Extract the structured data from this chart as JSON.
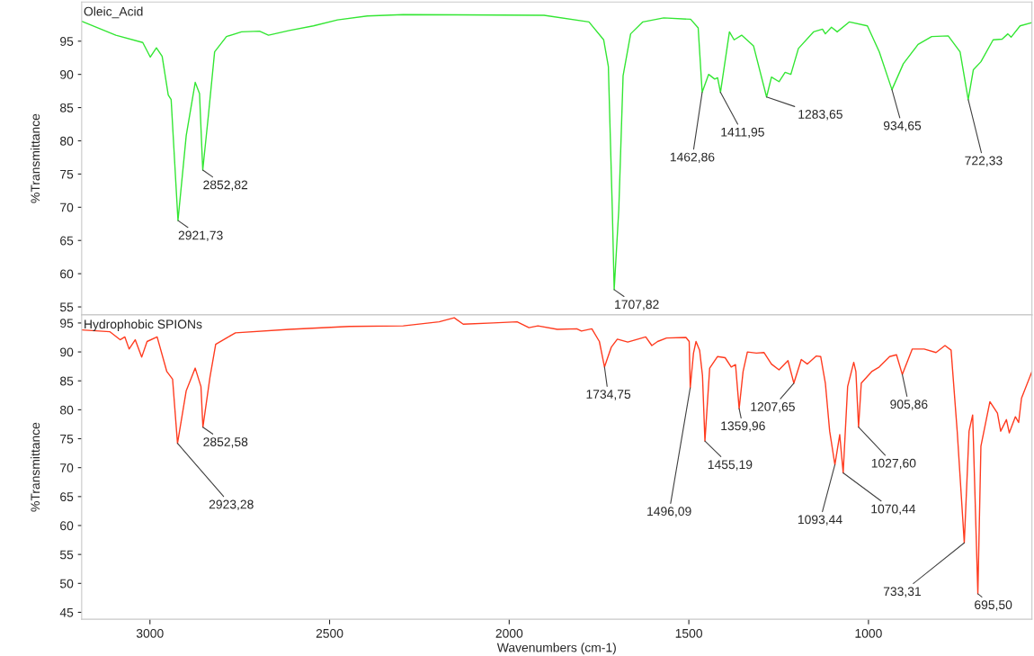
{
  "chart_data": [
    {
      "type": "line",
      "ylabel": "%Transmittance",
      "xlim": [
        3190,
        545
      ],
      "ylim": [
        53.8,
        100.9
      ],
      "tick_labels": "y",
      "xticks": [
        3000,
        2500,
        2000,
        1500,
        1000
      ],
      "yticks": [
        55,
        60,
        65,
        70,
        75,
        80,
        85,
        90,
        95
      ],
      "series": [
        {
          "name": "Oleic_Acid",
          "color": "#33e633",
          "x": [
            3190,
            3095,
            3020,
            2999,
            2982,
            2966,
            2949,
            2941,
            2922,
            2899,
            2874,
            2862,
            2853,
            2837,
            2820,
            2787,
            2745,
            2695,
            2670,
            2612,
            2545,
            2478,
            2395,
            2295,
            1903,
            1778,
            1737,
            1724,
            1713,
            1707.82,
            1695,
            1683,
            1662,
            1628,
            1570,
            1495,
            1474,
            1462.86,
            1445,
            1428,
            1420,
            1411.95,
            1387,
            1374,
            1353,
            1320,
            1283.65,
            1270,
            1249,
            1232,
            1216,
            1195,
            1153,
            1128,
            1120,
            1103,
            1087,
            1053,
            1003,
            970,
            934.65,
            903,
            862,
            824,
            778,
            745,
            722.33,
            708,
            687,
            653,
            628,
            612,
            603,
            578,
            545
          ],
          "values": [
            98.0,
            95.9,
            94.8,
            92.6,
            94.0,
            92.7,
            86.9,
            86.2,
            68.0,
            80.8,
            88.8,
            87.1,
            75.6,
            84.0,
            93.4,
            95.7,
            96.4,
            96.5,
            95.9,
            96.6,
            97.3,
            98.2,
            98.8,
            99.0,
            98.9,
            97.9,
            95.2,
            91.2,
            69.6,
            57.6,
            69.6,
            89.8,
            96.1,
            97.9,
            98.5,
            98.3,
            97.0,
            87.3,
            90.0,
            89.3,
            89.5,
            87.3,
            96.4,
            95.2,
            95.9,
            94.3,
            86.6,
            89.6,
            88.9,
            90.3,
            90.0,
            93.9,
            96.4,
            96.8,
            96.1,
            97.1,
            96.4,
            97.9,
            97.3,
            93.4,
            87.7,
            91.6,
            94.5,
            95.7,
            95.8,
            93.4,
            86.2,
            90.7,
            91.9,
            95.2,
            95.3,
            96.1,
            95.6,
            97.3,
            97.8
          ]
        }
      ],
      "annotations": [
        {
          "text": "2921,73",
          "x": 2921.73,
          "y": 68.0
        },
        {
          "text": "2852,82",
          "x": 2852.82,
          "y": 75.6
        },
        {
          "text": "1707,82",
          "x": 1707.82,
          "y": 57.6
        },
        {
          "text": "1462,86",
          "x": 1462.86,
          "y": 87.3
        },
        {
          "text": "1411,95",
          "x": 1411.95,
          "y": 87.3
        },
        {
          "text": "1283,65",
          "x": 1283.65,
          "y": 86.6
        },
        {
          "text": "934,65",
          "x": 934.65,
          "y": 87.7
        },
        {
          "text": "722,33",
          "x": 722.33,
          "y": 86.2
        }
      ]
    },
    {
      "type": "line",
      "xlabel": "Wavenumbers (cm-1)",
      "ylabel": "%Transmittance",
      "xlim": [
        3190,
        545
      ],
      "ylim": [
        43.8,
        96.4
      ],
      "xticks": [
        3000,
        2500,
        2000,
        1500,
        1000
      ],
      "yticks": [
        45,
        50,
        55,
        60,
        65,
        70,
        75,
        80,
        85,
        90,
        95
      ],
      "series": [
        {
          "name": "Hydrophobic SPIONs",
          "color": "#ff3b1f",
          "x": [
            3190,
            3112,
            3083,
            3070,
            3058,
            3041,
            3023,
            3008,
            2980,
            2953,
            2937,
            2923.28,
            2899,
            2874,
            2858,
            2852.58,
            2833,
            2817,
            2787,
            2762,
            2612,
            2445,
            2295,
            2195,
            2153,
            2128,
            2045,
            1978,
            1945,
            1920,
            1866,
            1812,
            1799,
            1770,
            1749,
            1734.75,
            1716,
            1699,
            1670,
            1620,
            1603,
            1587,
            1562,
            1508,
            1499,
            1496.09,
            1487,
            1480,
            1470,
            1462,
            1455.19,
            1442,
            1420,
            1399,
            1382,
            1370,
            1359.96,
            1349,
            1337,
            1312,
            1291,
            1270,
            1249,
            1224,
            1207.65,
            1187,
            1170,
            1145,
            1133,
            1120,
            1108,
            1093.44,
            1080,
            1070.44,
            1058,
            1041,
            1035,
            1027.6,
            1020,
            991,
            970,
            941,
            922,
            905.86,
            878,
            845,
            812,
            787,
            770,
            753,
            733.31,
            720,
            710,
            695.5,
            687,
            662,
            641,
            632,
            616,
            608,
            591,
            582,
            574,
            545
          ],
          "values": [
            93.8,
            93.5,
            92.1,
            92.6,
            90.5,
            92.1,
            89.1,
            91.8,
            92.6,
            86.6,
            85.3,
            74.2,
            83.3,
            87.2,
            84.0,
            77.0,
            85.6,
            91.3,
            92.4,
            93.3,
            93.9,
            94.4,
            94.5,
            95.2,
            95.9,
            94.8,
            95.0,
            95.2,
            94.2,
            94.5,
            93.9,
            94.0,
            93.6,
            94.0,
            91.8,
            87.4,
            90.8,
            92.2,
            91.7,
            92.6,
            91.1,
            91.8,
            92.4,
            92.5,
            91.8,
            83.8,
            89.8,
            91.8,
            90.3,
            85.9,
            74.6,
            87.2,
            89.2,
            89.0,
            87.4,
            87.8,
            80.2,
            86.6,
            90.0,
            89.8,
            89.9,
            87.9,
            86.9,
            88.5,
            84.6,
            88.7,
            87.9,
            89.3,
            89.2,
            84.6,
            76.3,
            70.5,
            75.7,
            69.1,
            84.0,
            88.2,
            86.6,
            77.0,
            84.6,
            86.6,
            87.4,
            89.2,
            89.5,
            86.1,
            90.5,
            90.5,
            89.9,
            91.1,
            90.3,
            76.3,
            57.0,
            76.3,
            79.1,
            48.2,
            73.7,
            81.4,
            79.4,
            76.3,
            78.3,
            76.0,
            78.8,
            77.8,
            82.0,
            86.6
          ]
        }
      ],
      "annotations": [
        {
          "text": "2923,28",
          "x": 2923.28,
          "y": 74.2
        },
        {
          "text": "2852,58",
          "x": 2852.58,
          "y": 77.0
        },
        {
          "text": "1734,75",
          "x": 1734.75,
          "y": 87.4
        },
        {
          "text": "1496,09",
          "x": 1496.09,
          "y": 83.8
        },
        {
          "text": "1455,19",
          "x": 1455.19,
          "y": 74.6
        },
        {
          "text": "1359,96",
          "x": 1359.96,
          "y": 80.2
        },
        {
          "text": "1207,65",
          "x": 1207.65,
          "y": 84.6
        },
        {
          "text": "1093,44",
          "x": 1093.44,
          "y": 70.5
        },
        {
          "text": "1070,44",
          "x": 1070.44,
          "y": 69.1
        },
        {
          "text": "1027,60",
          "x": 1027.6,
          "y": 77.0
        },
        {
          "text": "905,86",
          "x": 905.86,
          "y": 86.1
        },
        {
          "text": "733,31",
          "x": 733.31,
          "y": 57.0
        },
        {
          "text": "695,50",
          "x": 695.5,
          "y": 48.2
        }
      ]
    }
  ]
}
